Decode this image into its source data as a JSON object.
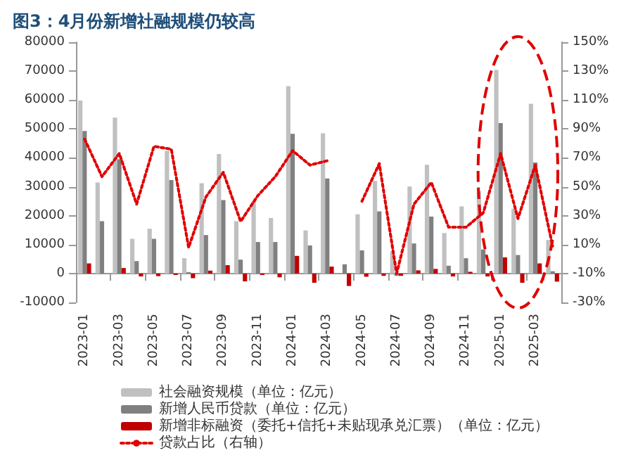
{
  "chart_data": {
    "type": "bar",
    "title": "图3：4月份新增社融规模仍较高",
    "categories": [
      "2023-01",
      null,
      "2023-03",
      null,
      "2023-05",
      null,
      "2023-07",
      null,
      "2023-09",
      null,
      "2023-11",
      null,
      "2024-01",
      null,
      "2024-03",
      null,
      "2024-05",
      null,
      "2024-07",
      null,
      "2024-09",
      null,
      "2024-11",
      null,
      "2025-01",
      null,
      "2025-03",
      null
    ],
    "series": [
      {
        "name": "社会融资规模（单位：亿元）",
        "color": "#c0c0c0",
        "values": [
          59800,
          31500,
          53900,
          12000,
          15500,
          42400,
          5300,
          31200,
          41300,
          18100,
          25000,
          19200,
          64800,
          14900,
          48500,
          null,
          20500,
          32000,
          7700,
          30100,
          37600,
          14000,
          23200,
          28500,
          70400,
          22400,
          58700,
          11600
        ]
      },
      {
        "name": "新增人民币贷款（单位：亿元）",
        "color": "#808080",
        "values": [
          49300,
          18100,
          39500,
          4300,
          12000,
          32300,
          500,
          13300,
          25400,
          4800,
          10900,
          10900,
          48300,
          9700,
          32900,
          3200,
          8000,
          21500,
          -800,
          10400,
          19700,
          2700,
          5300,
          8300,
          52000,
          6400,
          38400,
          800
        ]
      },
      {
        "name": "新增非标融资（委托+信托+未贴现承兑汇票）（单位：亿元）",
        "color": "#c00000",
        "values": [
          3500,
          null,
          1900,
          -1000,
          -900,
          -500,
          -1600,
          1000,
          2900,
          -2700,
          -500,
          -1300,
          6100,
          -3200,
          2400,
          -4300,
          -1100,
          -800,
          -800,
          1100,
          1600,
          -1000,
          600,
          -1000,
          5600,
          -3200,
          3500,
          -2800
        ]
      },
      {
        "name": "贷款占比（右轴）",
        "type": "line",
        "axis": "y2",
        "color": "#e00000",
        "marker": "none",
        "line_style": "dotted",
        "values": [
          83,
          57,
          73,
          38,
          78,
          76,
          8,
          43,
          60,
          26,
          44,
          57,
          75,
          65,
          68,
          null,
          40,
          66,
          -10,
          38,
          53,
          22,
          22,
          32,
          73,
          28,
          65,
          9
        ]
      }
    ],
    "ylim": [
      -10000,
      80000
    ],
    "yticks": [
      -10000,
      0,
      10000,
      20000,
      30000,
      40000,
      50000,
      60000,
      70000,
      80000
    ],
    "y2lim": [
      -30,
      150
    ],
    "y2ticks": [
      {
        "value": -30,
        "label": "-30%"
      },
      {
        "value": -10,
        "label": "-10%"
      },
      {
        "value": 10,
        "label": "10%"
      },
      {
        "value": 30,
        "label": "30%"
      },
      {
        "value": 50,
        "label": "50%"
      },
      {
        "value": 70,
        "label": "70%"
      },
      {
        "value": 90,
        "label": "90%"
      },
      {
        "value": 110,
        "label": "110%"
      },
      {
        "value": 130,
        "label": "130%"
      },
      {
        "value": 150,
        "label": "150%"
      }
    ],
    "legend": "bottom"
  }
}
